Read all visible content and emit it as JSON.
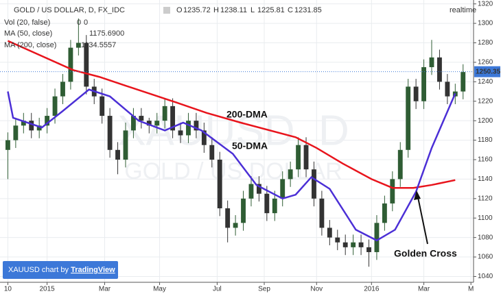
{
  "chart_data": {
    "type": "candlestick",
    "title": "GOLD / US DOLLAR, D, FX_IDC",
    "ohlc_header": [
      {
        "label": "O",
        "value": 1235.72
      },
      {
        "label": "H",
        "value": 1238.11
      },
      {
        "label": "L",
        "value": 1225.81
      },
      {
        "label": "C",
        "value": 1231.85
      }
    ],
    "indicators": [
      {
        "label": "Vol (20, false)",
        "values": [
          0,
          0
        ]
      },
      {
        "label": "MA (50, close)",
        "value_label": "1175.6900"
      },
      {
        "label": "MA (200, close)",
        "value_label": "1134.5557"
      }
    ],
    "realtime": "realtime",
    "watermark": [
      "XAUUSD, D",
      "GOLD / US DOLLAR"
    ],
    "footer": [
      "XAUUSD chart by ",
      "TradingView"
    ],
    "last_price": 1250.35,
    "up_color": "#2f5d34",
    "down_color": "#333333",
    "x": [
      0,
      3,
      6,
      9,
      12,
      15,
      18,
      21,
      24,
      27,
      30,
      33,
      36,
      39,
      42,
      45,
      48,
      51,
      54,
      57,
      60,
      63,
      66,
      69,
      72,
      75,
      78,
      81,
      84,
      87,
      90,
      93,
      96,
      99,
      102,
      105,
      108,
      111,
      114,
      117,
      120,
      123,
      126,
      129,
      132,
      135,
      138,
      141,
      144,
      147,
      150,
      153,
      156,
      159,
      162,
      165,
      168,
      171,
      174
    ],
    "open": [
      1170,
      1180,
      1195,
      1200,
      1190,
      1195,
      1205,
      1225,
      1240,
      1275,
      1280,
      1235,
      1225,
      1205,
      1170,
      1160,
      1190,
      1205,
      1200,
      1195,
      1200,
      1215,
      1190,
      1185,
      1200,
      1190,
      1175,
      1160,
      1110,
      1090,
      1095,
      1120,
      1135,
      1125,
      1105,
      1120,
      1140,
      1150,
      1175,
      1150,
      1120,
      1090,
      1080,
      1075,
      1070,
      1075,
      1070,
      1065,
      1095,
      1115,
      1140,
      1170,
      1235,
      1220,
      1255,
      1265,
      1240,
      1225,
      1230
    ],
    "high": [
      1188,
      1203,
      1208,
      1208,
      1203,
      1213,
      1233,
      1248,
      1283,
      1305,
      1288,
      1243,
      1233,
      1213,
      1178,
      1198,
      1213,
      1213,
      1203,
      1208,
      1223,
      1223,
      1198,
      1208,
      1208,
      1198,
      1183,
      1168,
      1118,
      1103,
      1128,
      1143,
      1143,
      1133,
      1128,
      1148,
      1158,
      1183,
      1183,
      1158,
      1128,
      1098,
      1088,
      1083,
      1083,
      1083,
      1078,
      1103,
      1123,
      1148,
      1178,
      1243,
      1243,
      1263,
      1283,
      1273,
      1248,
      1238,
      1258
    ],
    "low": [
      1140,
      1172,
      1187,
      1182,
      1182,
      1187,
      1197,
      1217,
      1232,
      1267,
      1227,
      1217,
      1197,
      1162,
      1145,
      1152,
      1182,
      1192,
      1187,
      1187,
      1192,
      1182,
      1177,
      1177,
      1182,
      1167,
      1152,
      1102,
      1075,
      1082,
      1087,
      1112,
      1117,
      1097,
      1097,
      1112,
      1132,
      1142,
      1142,
      1112,
      1082,
      1072,
      1067,
      1062,
      1062,
      1062,
      1050,
      1057,
      1087,
      1107,
      1132,
      1162,
      1212,
      1212,
      1247,
      1232,
      1217,
      1217,
      1222
    ],
    "close": [
      1180,
      1195,
      1200,
      1190,
      1195,
      1205,
      1225,
      1240,
      1275,
      1280,
      1235,
      1225,
      1205,
      1170,
      1160,
      1190,
      1205,
      1200,
      1195,
      1200,
      1215,
      1190,
      1185,
      1200,
      1190,
      1175,
      1160,
      1110,
      1090,
      1095,
      1120,
      1135,
      1125,
      1105,
      1120,
      1140,
      1150,
      1175,
      1150,
      1120,
      1090,
      1080,
      1075,
      1070,
      1075,
      1070,
      1065,
      1095,
      1115,
      1140,
      1170,
      1235,
      1220,
      1255,
      1265,
      1240,
      1225,
      1230,
      1250
    ],
    "series": [
      {
        "name": "200-DMA",
        "color": "#e8141c",
        "x": [
          0,
          25,
          35,
          45,
          63,
          76,
          89,
          110,
          118,
          128,
          139,
          147,
          155,
          162,
          171
        ],
        "values": [
          1282,
          1252,
          1245,
          1236,
          1220,
          1208,
          1198,
          1183,
          1172,
          1156,
          1140,
          1131,
          1131,
          1134,
          1139
        ]
      },
      {
        "name": "50-DMA",
        "color": "#4b2fd6",
        "x": [
          0,
          2,
          13,
          21,
          31,
          39,
          50,
          60,
          67,
          74,
          86,
          95,
          105,
          110,
          116,
          123,
          133,
          141,
          148,
          156,
          162,
          171
        ],
        "values": [
          1230,
          1203,
          1193,
          1210,
          1232,
          1225,
          1200,
          1190,
          1198,
          1190,
          1166,
          1134,
          1120,
          1124,
          1142,
          1130,
          1088,
          1077,
          1088,
          1127,
          1172,
          1228
        ]
      }
    ],
    "annotation": "Golden Cross",
    "xlim": [
      -3,
      178
    ],
    "ylim": [
      1034,
      1324
    ],
    "yticks": [
      1040,
      1060,
      1080,
      1100,
      1120,
      1140,
      1160,
      1180,
      1200,
      1220,
      1240,
      1260,
      1280,
      1300,
      1320
    ],
    "xticks": [
      {
        "value": 0,
        "label": "10"
      },
      {
        "value": 15,
        "label": "2015"
      },
      {
        "value": 37,
        "label": "Mar"
      },
      {
        "value": 58,
        "label": "May"
      },
      {
        "value": 80,
        "label": "Jul"
      },
      {
        "value": 98,
        "label": "Sep"
      },
      {
        "value": 118,
        "label": "Nov"
      },
      {
        "value": 139,
        "label": "2016"
      },
      {
        "value": 159,
        "label": "Mar"
      },
      {
        "value": 177,
        "label": "M"
      }
    ],
    "grid": true
  }
}
